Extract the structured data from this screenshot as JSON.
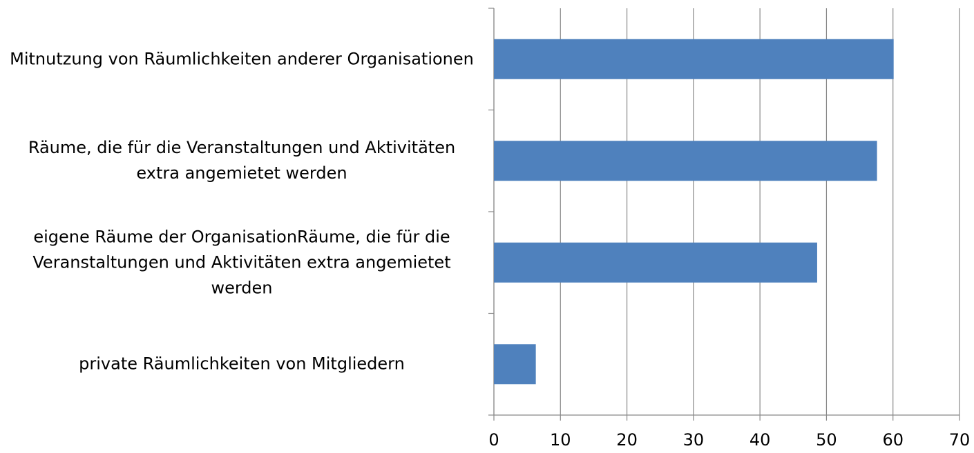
{
  "chart_data": {
    "type": "bar",
    "orientation": "horizontal",
    "categories": [
      "Mitnutzung von Räumlichkeiten anderer Organisationen",
      "Räume, die für die Veranstaltungen und Aktivitäten extra angemietet werden",
      "eigene Räume der OrganisationRäume, die für die Veranstaltungen und Aktivitäten extra angemietet werden",
      "private Räumlichkeiten von Mitgliedern"
    ],
    "values": [
      60.1,
      57.6,
      48.6,
      6.3
    ],
    "color": "#4f81bd",
    "xlim": [
      0,
      70
    ],
    "xticks": [
      0,
      10,
      20,
      30,
      40,
      50,
      60,
      70
    ],
    "grid": true
  }
}
